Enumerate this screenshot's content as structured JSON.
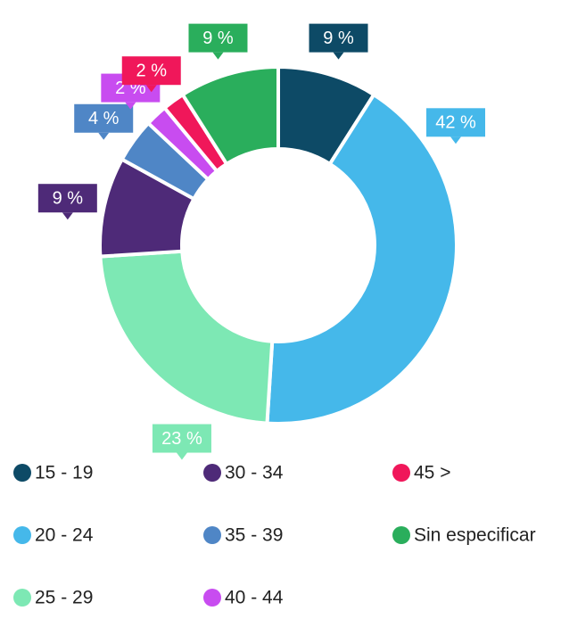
{
  "chart_data": {
    "type": "donut",
    "categories": [
      "15 - 19",
      "20 - 24",
      "25 - 29",
      "30 - 34",
      "35 - 39",
      "40 - 44",
      "45 >",
      "Sin especificar"
    ],
    "values": [
      9,
      42,
      23,
      9,
      4,
      2,
      2,
      9
    ],
    "value_labels": [
      "9 %",
      "42 %",
      "23 %",
      "9 %",
      "4 %",
      "2 %",
      "2 %",
      "9 %"
    ],
    "colors": [
      "#0d4a66",
      "#45b8ea",
      "#7de8b4",
      "#4e2a78",
      "#4f86c6",
      "#c84cf0",
      "#f0175a",
      "#2aae5c"
    ],
    "legend": "bottom"
  }
}
